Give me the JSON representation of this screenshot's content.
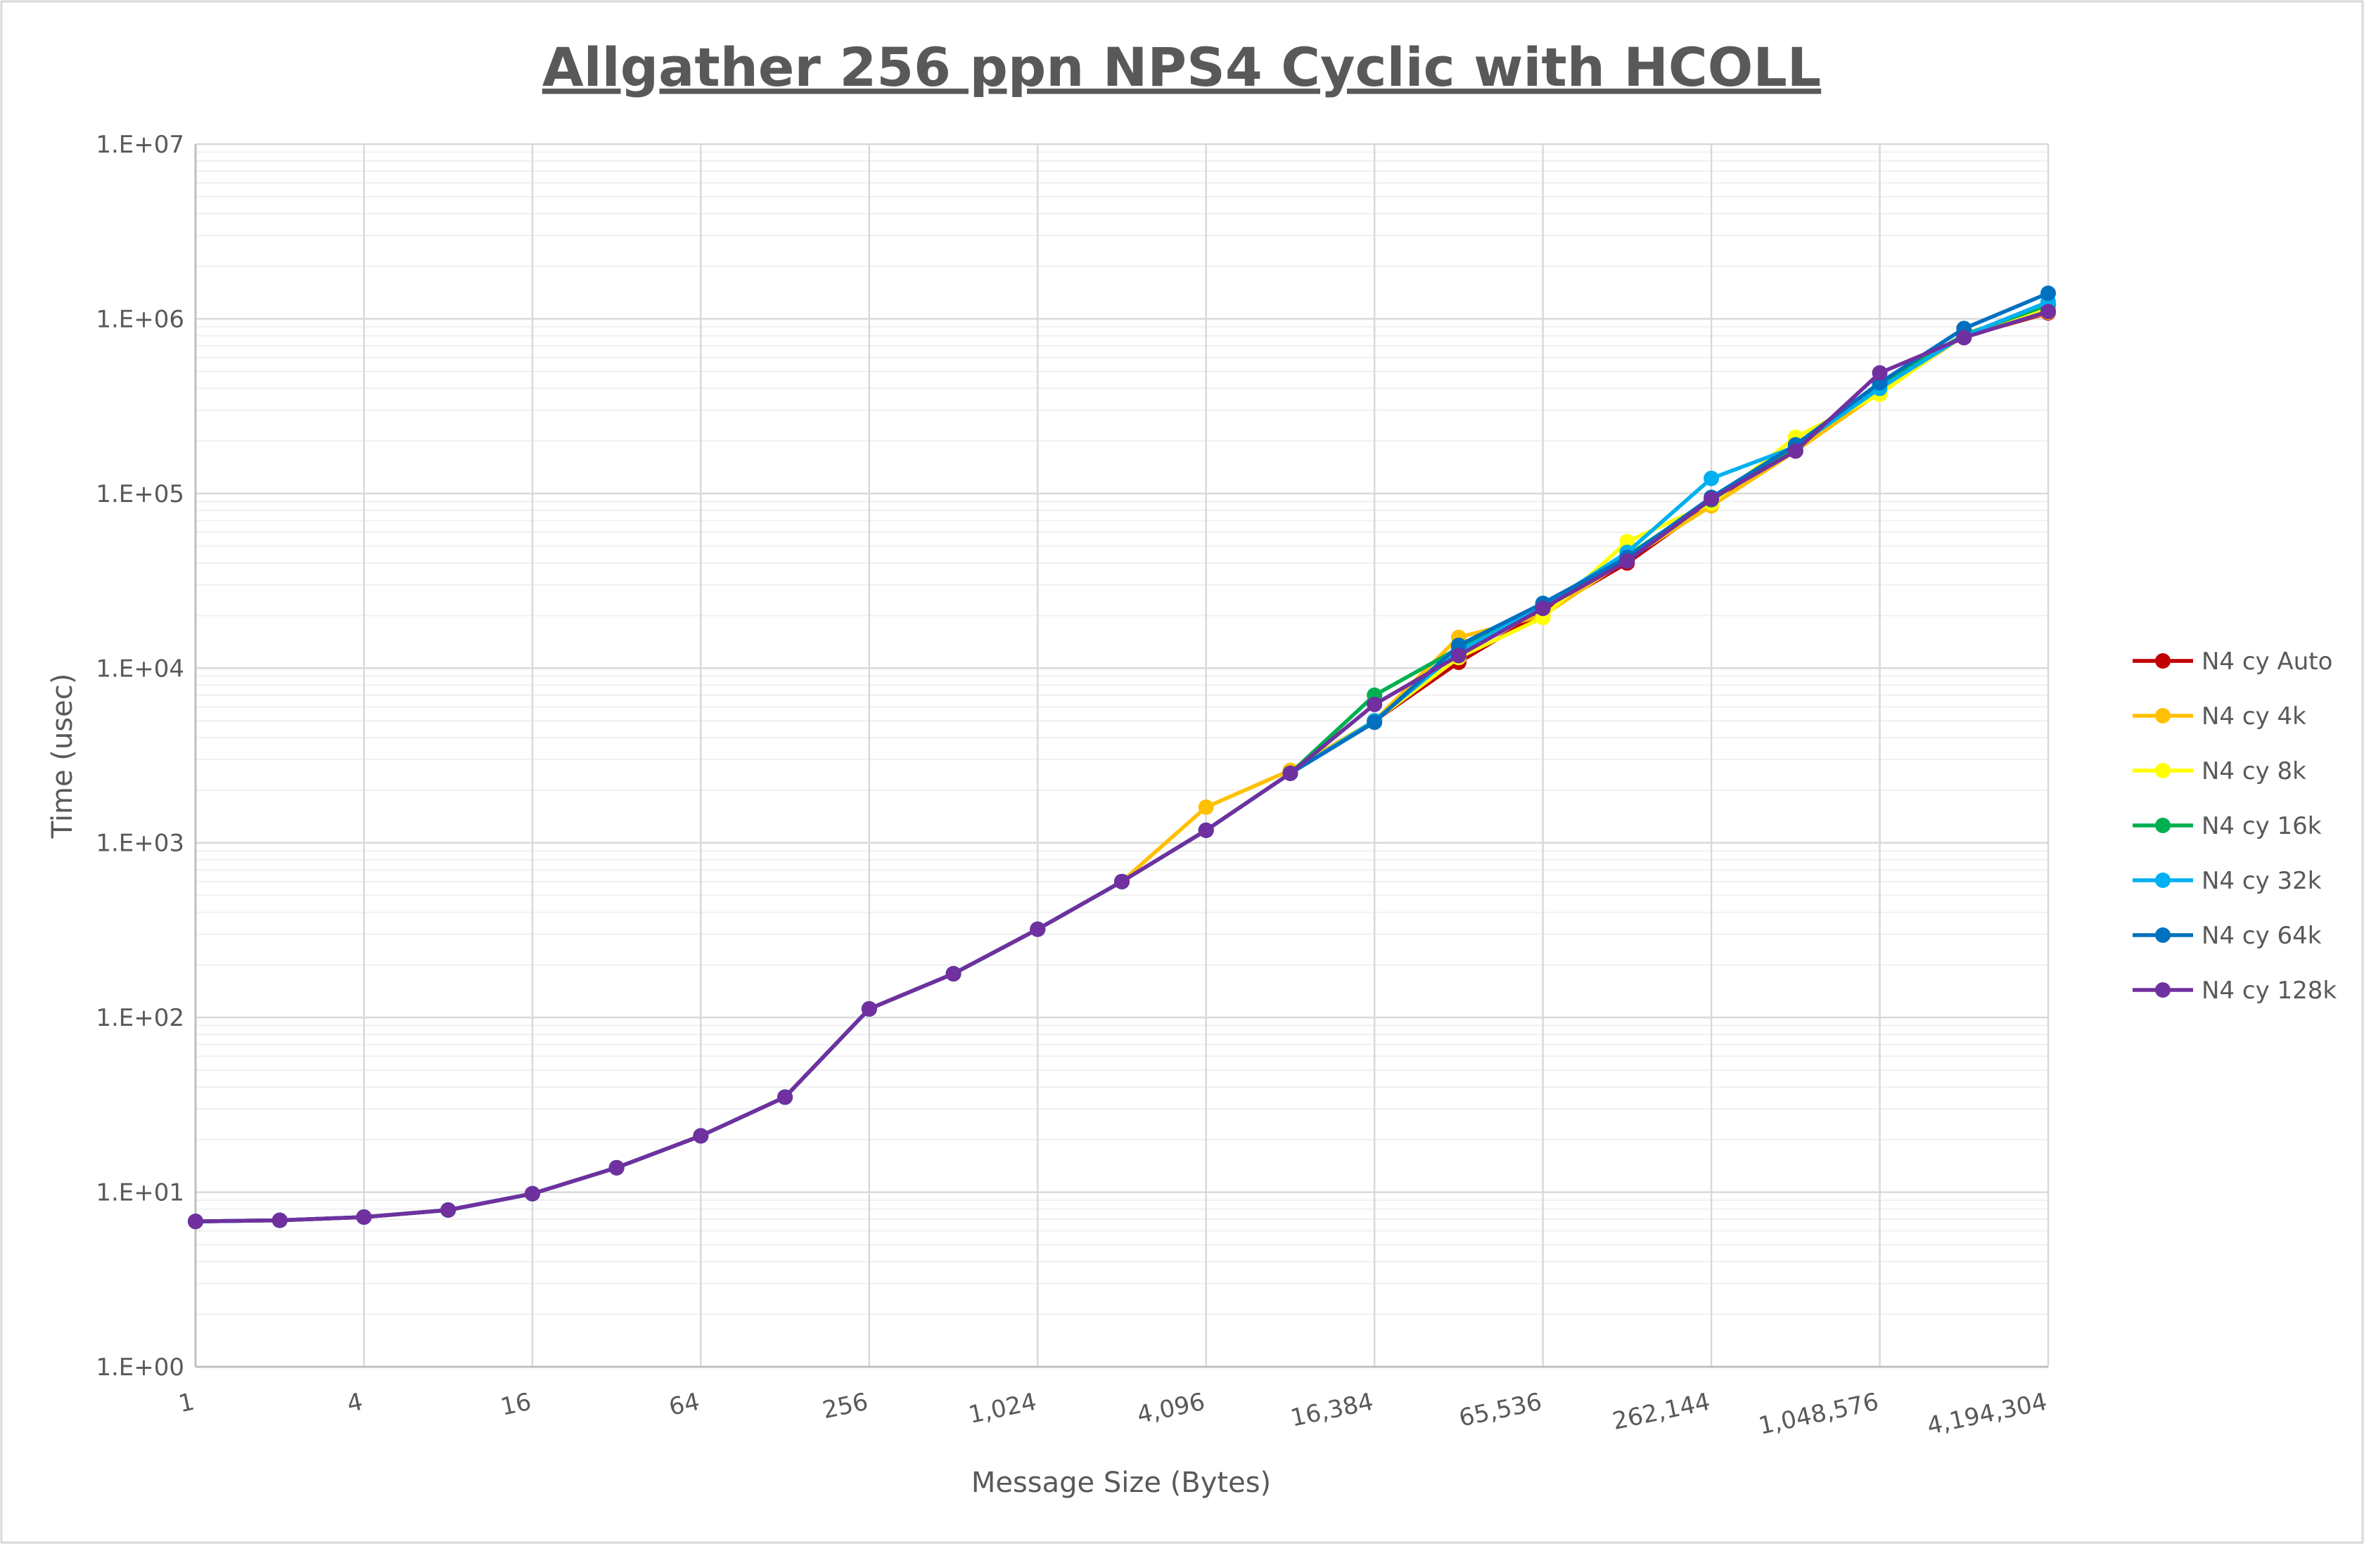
{
  "chart_data": {
    "type": "line",
    "title": "Allgather 256 ppn NPS4 Cyclic with HCOLL",
    "xlabel": "Message Size (Bytes)",
    "ylabel": "Time (usec)",
    "x_scale": "log2",
    "y_scale": "log10",
    "xlim": [
      1,
      4194304
    ],
    "ylim": [
      1,
      10000000
    ],
    "grid": true,
    "legend_position": "right",
    "x": [
      1,
      2,
      4,
      8,
      16,
      32,
      64,
      128,
      256,
      512,
      1024,
      2048,
      4096,
      8192,
      16384,
      32768,
      65536,
      131072,
      262144,
      524288,
      1048576,
      2097152,
      4194304
    ],
    "x_tick_values": [
      1,
      4,
      16,
      64,
      256,
      1024,
      4096,
      16384,
      65536,
      262144,
      1048576,
      4194304
    ],
    "x_tick_labels": [
      "1",
      "4",
      "16",
      "64",
      "256",
      "1,024",
      "4,096",
      "16,384",
      "65,536",
      "262,144",
      "1,048,576",
      "4,194,304"
    ],
    "y_tick_values": [
      1,
      10,
      100,
      1000,
      10000,
      100000,
      1000000,
      10000000
    ],
    "y_tick_labels": [
      "1.E+00",
      "1.E+01",
      "1.E+02",
      "1.E+03",
      "1.E+04",
      "1.E+05",
      "1.E+06",
      "1.E+07"
    ],
    "series": [
      {
        "name": "N4 cy Auto",
        "color": "#C00000",
        "values": [
          6.8,
          6.9,
          7.2,
          7.9,
          9.8,
          13.8,
          21,
          35,
          112,
          178,
          320,
          600,
          1180,
          2500,
          5000,
          10800,
          21000,
          40000,
          88000,
          175000,
          420000,
          790000,
          1080000
        ]
      },
      {
        "name": "N4 cy 4k",
        "color": "#FFC000",
        "values": [
          6.8,
          6.9,
          7.2,
          7.9,
          9.8,
          13.8,
          21,
          35,
          112,
          178,
          320,
          600,
          1600,
          2600,
          5000,
          15000,
          20000,
          42000,
          85000,
          175000,
          380000,
          800000,
          1090000
        ]
      },
      {
        "name": "N4 cy 8k",
        "color": "#FFFF00",
        "values": [
          6.8,
          6.9,
          7.2,
          7.9,
          9.8,
          13.8,
          21,
          35,
          112,
          178,
          320,
          600,
          1180,
          2500,
          5000,
          11500,
          19500,
          53000,
          88000,
          210000,
          370000,
          820000,
          1150000
        ]
      },
      {
        "name": "N4 cy 16k",
        "color": "#00B050",
        "values": [
          6.8,
          6.9,
          7.2,
          7.9,
          9.8,
          13.8,
          21,
          35,
          112,
          178,
          320,
          600,
          1180,
          2500,
          7000,
          13000,
          23000,
          44000,
          92000,
          185000,
          420000,
          810000,
          1200000
        ]
      },
      {
        "name": "N4 cy 32k",
        "color": "#00B0F0",
        "values": [
          6.8,
          6.9,
          7.2,
          7.9,
          9.8,
          13.8,
          21,
          35,
          112,
          178,
          320,
          600,
          1180,
          2500,
          5000,
          12500,
          22500,
          46000,
          122000,
          185000,
          400000,
          800000,
          1250000
        ]
      },
      {
        "name": "N4 cy 64k",
        "color": "#0070C0",
        "values": [
          6.8,
          6.9,
          7.2,
          7.9,
          9.8,
          13.8,
          21,
          35,
          112,
          178,
          320,
          600,
          1180,
          2500,
          4900,
          13500,
          23500,
          43000,
          95000,
          190000,
          430000,
          880000,
          1400000
        ]
      },
      {
        "name": "N4 cy 128k",
        "color": "#7030A0",
        "values": [
          6.8,
          6.9,
          7.2,
          7.9,
          9.8,
          13.8,
          21,
          35,
          112,
          178,
          320,
          600,
          1180,
          2500,
          6200,
          11800,
          22000,
          41000,
          93000,
          175000,
          490000,
          780000,
          1100000
        ]
      }
    ]
  }
}
